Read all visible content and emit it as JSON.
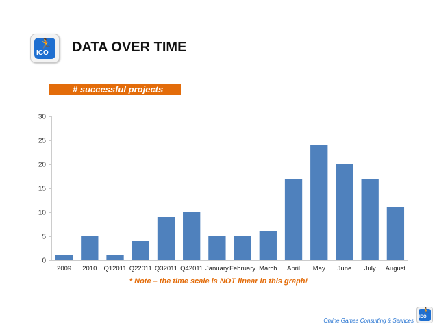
{
  "slide": {
    "title": "DATA OVER TIME",
    "banner": "# successful projects",
    "note": "* Note – the time scale is NOT linear in this graph!",
    "footer": "Online Games Consulting & Services",
    "logo_text": "ICO",
    "logo_icon": "runner-icon",
    "accent_color": "#e36c0a",
    "bar_color": "#4f81bd"
  },
  "chart_data": {
    "type": "bar",
    "title": "",
    "xlabel": "",
    "ylabel": "",
    "categories": [
      "2009",
      "2010",
      "Q12011",
      "Q22011",
      "Q32011",
      "Q42011",
      "January",
      "February",
      "March",
      "April",
      "May",
      "June",
      "July",
      "August"
    ],
    "values": [
      1,
      5,
      1,
      4,
      9,
      10,
      5,
      5,
      6,
      17,
      24,
      20,
      17,
      11
    ],
    "ylim": [
      0,
      30
    ],
    "yticks": [
      0,
      5,
      10,
      15,
      20,
      25,
      30
    ],
    "grid": false,
    "legend": "none"
  }
}
